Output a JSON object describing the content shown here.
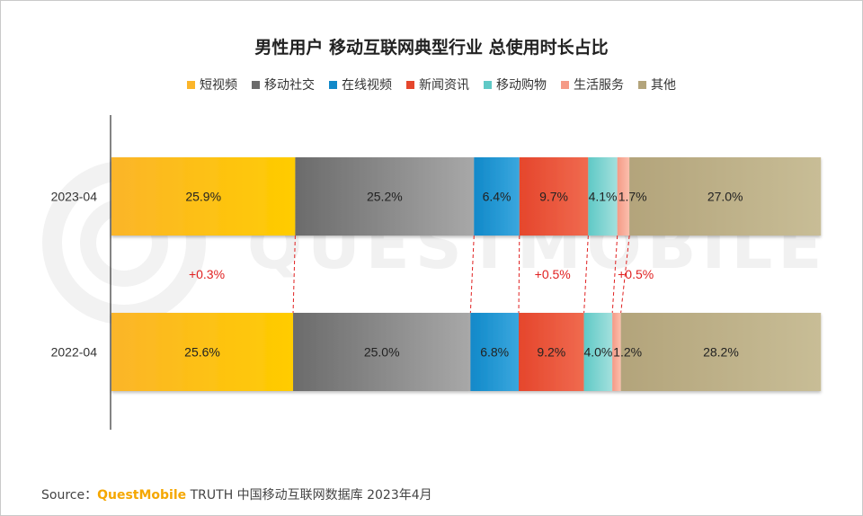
{
  "title": "男性用户 移动互联网典型行业 总使用时长占比",
  "source": {
    "prefix": "Source：",
    "brand": "QuestMobile",
    "text": "TRUTH 中国移动互联网数据库 2023年4月"
  },
  "watermark": "QUESTMOBILE",
  "chart_data": {
    "type": "bar",
    "orientation": "horizontal",
    "stacked": true,
    "categories": [
      "2023-04",
      "2022-04"
    ],
    "series": [
      {
        "name": "短视频",
        "values": [
          25.9,
          25.6
        ],
        "color_start": "#fbb52a",
        "color_end": "#ffcc00"
      },
      {
        "name": "移动社交",
        "values": [
          25.2,
          25.0
        ],
        "color_start": "#6b6b6b",
        "color_end": "#a8a8a8"
      },
      {
        "name": "在线视频",
        "values": [
          6.4,
          6.8
        ],
        "color_start": "#1189c9",
        "color_end": "#3aa7de"
      },
      {
        "name": "新闻资讯",
        "values": [
          9.7,
          9.2
        ],
        "color_start": "#e5462c",
        "color_end": "#f06a4f"
      },
      {
        "name": "移动购物",
        "values": [
          4.1,
          4.0
        ],
        "color_start": "#5fc9c6",
        "color_end": "#a3e0dd"
      },
      {
        "name": "生活服务",
        "values": [
          1.7,
          1.2
        ],
        "color_start": "#f59a86",
        "color_end": "#fbbfad"
      },
      {
        "name": "其他",
        "values": [
          27.0,
          28.2
        ],
        "color_start": "#b3a47b",
        "color_end": "#c8bd96"
      }
    ],
    "labels": [
      [
        "25.9%",
        "25.2%",
        "6.4%",
        "9.7%",
        "4.1%",
        "1.7%",
        "27.0%"
      ],
      [
        "25.6%",
        "25.0%",
        "6.8%",
        "9.2%",
        "4.0%",
        "1.2%",
        "28.2%"
      ]
    ],
    "changes": [
      {
        "after_series": 0,
        "text": "+0.3%"
      },
      {
        "after_series": 3,
        "text": "+0.5%"
      },
      {
        "after_series": 5,
        "text": "+0.5%"
      }
    ],
    "change_color": "#e02020",
    "xlim": [
      0,
      100.1
    ],
    "legend_position": "top-center",
    "grid": false
  }
}
